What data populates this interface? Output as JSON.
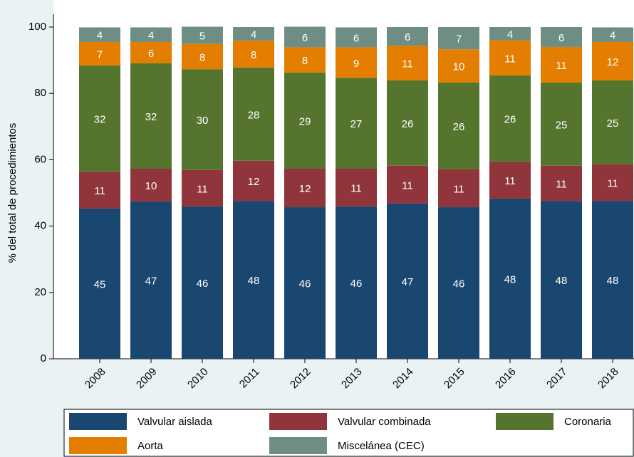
{
  "chart_data": {
    "type": "stacked-bar",
    "y_label": "% del total de procedimientos",
    "categories": [
      "2008",
      "2009",
      "2010",
      "2011",
      "2012",
      "2013",
      "2014",
      "2015",
      "2016",
      "2017",
      "2018"
    ],
    "series": [
      {
        "name": "Valvular aislada",
        "color": "#1a476f",
        "values": [
          45.3,
          47.4,
          45.9,
          47.6,
          45.7,
          45.9,
          46.8,
          45.7,
          48.3,
          47.6,
          47.6
        ],
        "value_labels": [
          "45",
          "47",
          "46",
          "48",
          "46",
          "46",
          "47",
          "46",
          "48",
          "48",
          "48"
        ]
      },
      {
        "name": "Valvular combinada",
        "color": "#90353b",
        "values": [
          11.1,
          9.9,
          11.0,
          12.1,
          11.6,
          11.4,
          11.4,
          11.4,
          11.1,
          10.6,
          11.0
        ],
        "value_labels": [
          "11",
          "10",
          "11",
          "12",
          "12",
          "11",
          "11",
          "11",
          "11",
          "11",
          "11"
        ]
      },
      {
        "name": "Coronaria",
        "color": "#55752f",
        "values": [
          32.0,
          31.8,
          30.4,
          28.1,
          29.0,
          27.4,
          25.7,
          26.2,
          26.0,
          25.1,
          25.3
        ],
        "value_labels": [
          "32",
          "32",
          "30",
          "28",
          "29",
          "27",
          "26",
          "26",
          "26",
          "25",
          "25"
        ]
      },
      {
        "name": "Aorta",
        "color": "#e37e00",
        "values": [
          7.1,
          6.4,
          7.6,
          8.1,
          7.6,
          9.2,
          10.5,
          10.0,
          10.6,
          10.7,
          11.6
        ],
        "value_labels": [
          "7",
          "6",
          "8",
          "8",
          "8",
          "9",
          "11",
          "10",
          "11",
          "11",
          "12"
        ]
      },
      {
        "name": "Miscelánea (CEC)",
        "color": "#6e8e84",
        "values": [
          4.4,
          4.4,
          5.2,
          4.1,
          6.2,
          6.0,
          5.6,
          6.7,
          4.0,
          6.0,
          4.4
        ],
        "value_labels": [
          "4",
          "4",
          "5",
          "4",
          "6",
          "6",
          "6",
          "7",
          "4",
          "6",
          "4"
        ]
      }
    ],
    "ylim": [
      0,
      100
    ],
    "yticks": [
      0,
      20,
      40,
      60,
      80,
      100
    ],
    "grid": false
  }
}
